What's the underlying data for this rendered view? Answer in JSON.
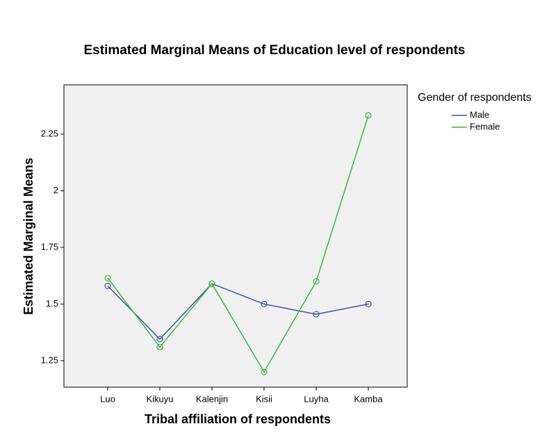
{
  "chart_data": {
    "type": "line",
    "title": "Estimated Marginal Means of Education level of respondents",
    "x_label": "Tribal affiliation of respondents",
    "y_label": "Estimated Marginal Means",
    "legend_title": "Gender of respondents",
    "categories": [
      "Luo",
      "Kikuyu",
      "Kalenjin",
      "Kisii",
      "Luyha",
      "Kamba"
    ],
    "series": [
      {
        "name": "Male",
        "color": "#3c4fa8",
        "values": [
          1.58,
          1.345,
          1.59,
          1.5,
          1.455,
          1.5
        ]
      },
      {
        "name": "Female",
        "color": "#3cb63c",
        "values": [
          1.615,
          1.31,
          1.59,
          1.2,
          1.6,
          2.333
        ]
      }
    ],
    "ylim": [
      1.133,
      2.468
    ],
    "yticks": [
      1.25,
      1.5,
      1.75,
      2,
      2.25
    ],
    "grid": false,
    "legend": "right"
  }
}
